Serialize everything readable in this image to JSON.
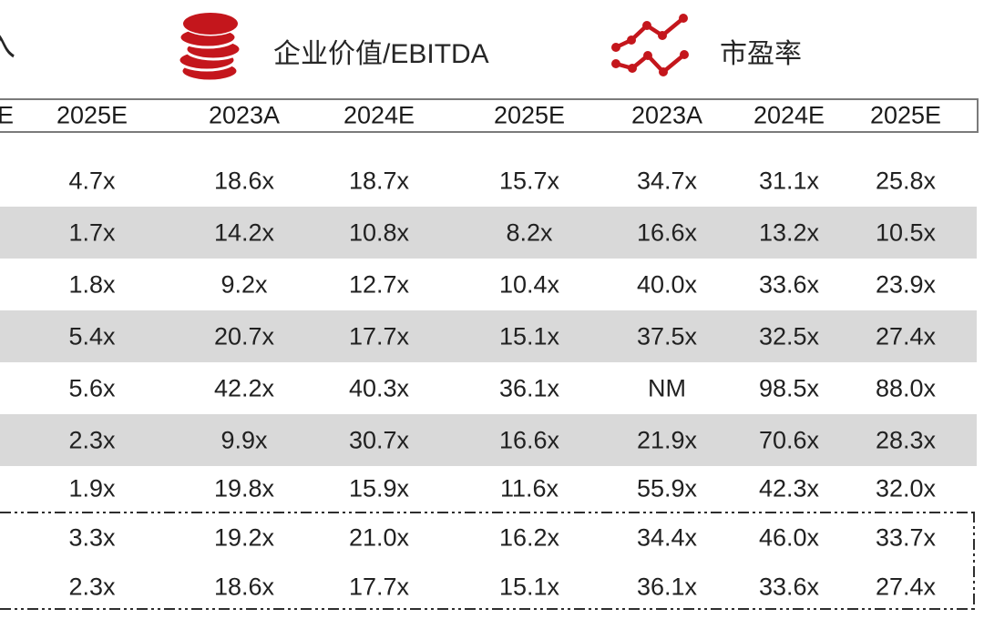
{
  "legend": {
    "revenue_partial": "入",
    "ev_ebitda_label": "企业价值/EBITDA",
    "pe_label": "市盈率"
  },
  "table": {
    "columns": [
      "E",
      "2025E",
      "2023A",
      "2024E",
      "2025E",
      "2023A",
      "2024E",
      "2025E"
    ],
    "rows": [
      [
        "",
        "4.7x",
        "18.6x",
        "18.7x",
        "15.7x",
        "34.7x",
        "31.1x",
        "25.8x"
      ],
      [
        "",
        "1.7x",
        "14.2x",
        "10.8x",
        "8.2x",
        "16.6x",
        "13.2x",
        "10.5x"
      ],
      [
        "",
        "1.8x",
        "9.2x",
        "12.7x",
        "10.4x",
        "40.0x",
        "33.6x",
        "23.9x"
      ],
      [
        "",
        "5.4x",
        "20.7x",
        "17.7x",
        "15.1x",
        "37.5x",
        "32.5x",
        "27.4x"
      ],
      [
        "",
        "5.6x",
        "42.2x",
        "40.3x",
        "36.1x",
        "NM",
        "98.5x",
        "88.0x"
      ],
      [
        "",
        "2.3x",
        "9.9x",
        "30.7x",
        "16.6x",
        "21.9x",
        "70.6x",
        "28.3x"
      ],
      [
        "",
        "1.9x",
        "19.8x",
        "15.9x",
        "11.6x",
        "55.9x",
        "42.3x",
        "32.0x"
      ],
      [
        "",
        "3.3x",
        "19.2x",
        "21.0x",
        "16.2x",
        "34.4x",
        "46.0x",
        "33.7x"
      ],
      [
        "",
        "2.3x",
        "18.6x",
        "17.7x",
        "15.1x",
        "36.1x",
        "33.6x",
        "27.4x"
      ]
    ],
    "striped_row_indexes": [
      1,
      3,
      5
    ],
    "average_box_row_indexes": [
      7,
      8
    ]
  },
  "colors": {
    "accent_red": "#c4161c",
    "row_stripe": "#d9d9d9",
    "header_border": "#7a7a7a",
    "dash_border": "#2e2e2e",
    "text": "#212121"
  }
}
